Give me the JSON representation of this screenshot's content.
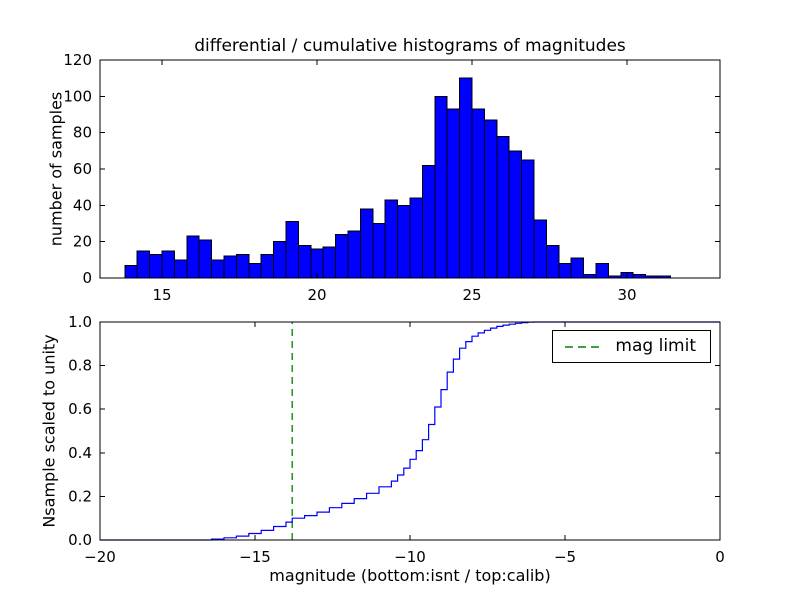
{
  "figure": {
    "background": "#ffffff",
    "frame_color": "#000000"
  },
  "chart_data": [
    {
      "type": "bar",
      "title": "differential / cumulative histograms of magnitudes",
      "ylabel": "number of samples",
      "xlabel": "",
      "xlim": [
        13,
        33
      ],
      "ylim": [
        0,
        120
      ],
      "xticks": [
        15,
        20,
        25,
        30
      ],
      "xtick_labels": [
        "15",
        "20",
        "25",
        "30"
      ],
      "yticks": [
        0,
        20,
        40,
        60,
        80,
        100,
        120
      ],
      "ytick_labels": [
        "0",
        "20",
        "40",
        "60",
        "80",
        "100",
        "120"
      ],
      "grid": false,
      "bin_start": 13.8,
      "bin_width": 0.4,
      "counts": [
        7,
        15,
        13,
        15,
        10,
        23,
        21,
        10,
        12,
        13,
        8,
        13,
        20,
        31,
        18,
        16,
        17,
        24,
        26,
        38,
        30,
        43,
        40,
        44,
        62,
        100,
        93,
        110,
        93,
        87,
        78,
        70,
        65,
        32,
        18,
        8,
        11,
        2,
        8,
        1,
        3,
        2,
        1,
        1
      ],
      "bar_color": "#0000ff",
      "bar_edge": "#000000"
    },
    {
      "type": "line",
      "title": "",
      "ylabel": "Nsample scaled to unity",
      "xlabel": "magnitude (bottom:isnt / top:calib)",
      "xlim": [
        -20,
        0
      ],
      "ylim": [
        0.0,
        1.0
      ],
      "xticks": [
        -20,
        -15,
        -10,
        -5,
        0
      ],
      "xtick_labels": [
        "−20",
        "−15",
        "−10",
        "−5",
        "0"
      ],
      "yticks": [
        0.0,
        0.2,
        0.4,
        0.6,
        0.8,
        1.0
      ],
      "ytick_labels": [
        "0.0",
        "0.2",
        "0.4",
        "0.6",
        "0.8",
        "1.0"
      ],
      "grid": false,
      "line_color": "#0000ff",
      "step_points": [
        [
          -20,
          0
        ],
        [
          -16.4,
          0.004
        ],
        [
          -16,
          0.01
        ],
        [
          -15.6,
          0.018
        ],
        [
          -15.2,
          0.03
        ],
        [
          -14.8,
          0.044
        ],
        [
          -14.4,
          0.062
        ],
        [
          -14,
          0.082
        ],
        [
          -13.8,
          0.1
        ],
        [
          -13.4,
          0.112
        ],
        [
          -13,
          0.128
        ],
        [
          -12.6,
          0.148
        ],
        [
          -12.2,
          0.168
        ],
        [
          -11.8,
          0.19
        ],
        [
          -11.4,
          0.214
        ],
        [
          -11,
          0.244
        ],
        [
          -10.6,
          0.27
        ],
        [
          -10.4,
          0.298
        ],
        [
          -10.2,
          0.33
        ],
        [
          -10,
          0.37
        ],
        [
          -9.8,
          0.41
        ],
        [
          -9.6,
          0.46
        ],
        [
          -9.4,
          0.53
        ],
        [
          -9.2,
          0.61
        ],
        [
          -9,
          0.69
        ],
        [
          -8.8,
          0.77
        ],
        [
          -8.6,
          0.83
        ],
        [
          -8.4,
          0.88
        ],
        [
          -8.2,
          0.91
        ],
        [
          -8,
          0.935
        ],
        [
          -7.8,
          0.95
        ],
        [
          -7.6,
          0.962
        ],
        [
          -7.4,
          0.972
        ],
        [
          -7.2,
          0.98
        ],
        [
          -7,
          0.986
        ],
        [
          -6.8,
          0.99
        ],
        [
          -6.6,
          0.994
        ],
        [
          -6.4,
          0.997
        ],
        [
          -6.2,
          0.999
        ],
        [
          -6,
          1.0
        ],
        [
          0,
          1.0
        ]
      ],
      "mag_limit": {
        "x": -13.8,
        "color": "#008000",
        "style": "dashed",
        "label": "mag limit"
      },
      "legend_position": "upper right"
    }
  ]
}
